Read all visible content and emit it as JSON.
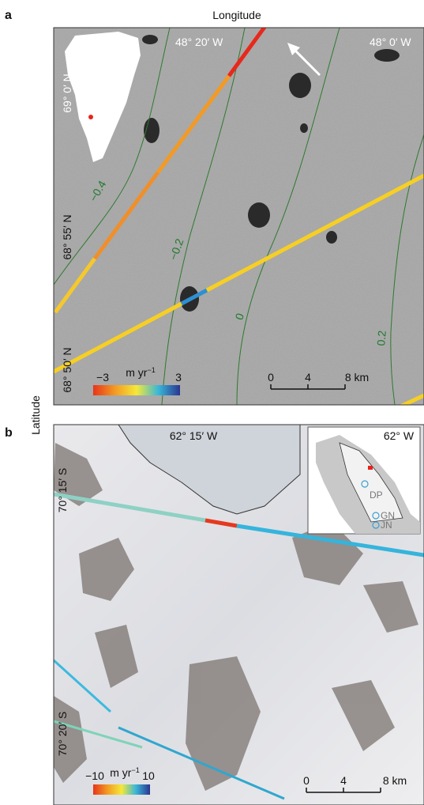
{
  "panel_a": {
    "letter": "a",
    "axis_top": "Longitude",
    "lon_labels": [
      "48° 20′ W",
      "48° 0′ W"
    ],
    "lat_labels": [
      "69° 0′ N",
      "68° 55′ N",
      "68° 50′ N"
    ],
    "contour_labels": [
      "−0.4",
      "−0.2",
      "0",
      "0.2"
    ],
    "colorbar": {
      "min": "−3",
      "unit": "m yr",
      "unit_exp": "−1",
      "max": "3"
    },
    "scale": [
      "0",
      "4",
      "8 km"
    ]
  },
  "axis_left": "Latitude",
  "panel_b": {
    "letter": "b",
    "lon_labels": [
      "62° 15′ W",
      "62° W"
    ],
    "lat_labels": [
      "70° 15′ S",
      "70° 20′ S"
    ],
    "inset_labels": [
      "DP",
      "GN",
      "JN"
    ],
    "colorbar": {
      "min": "−10",
      "unit": "m yr",
      "unit_exp": "−1",
      "max": "10"
    },
    "scale": [
      "0",
      "4",
      "8 km"
    ]
  }
}
